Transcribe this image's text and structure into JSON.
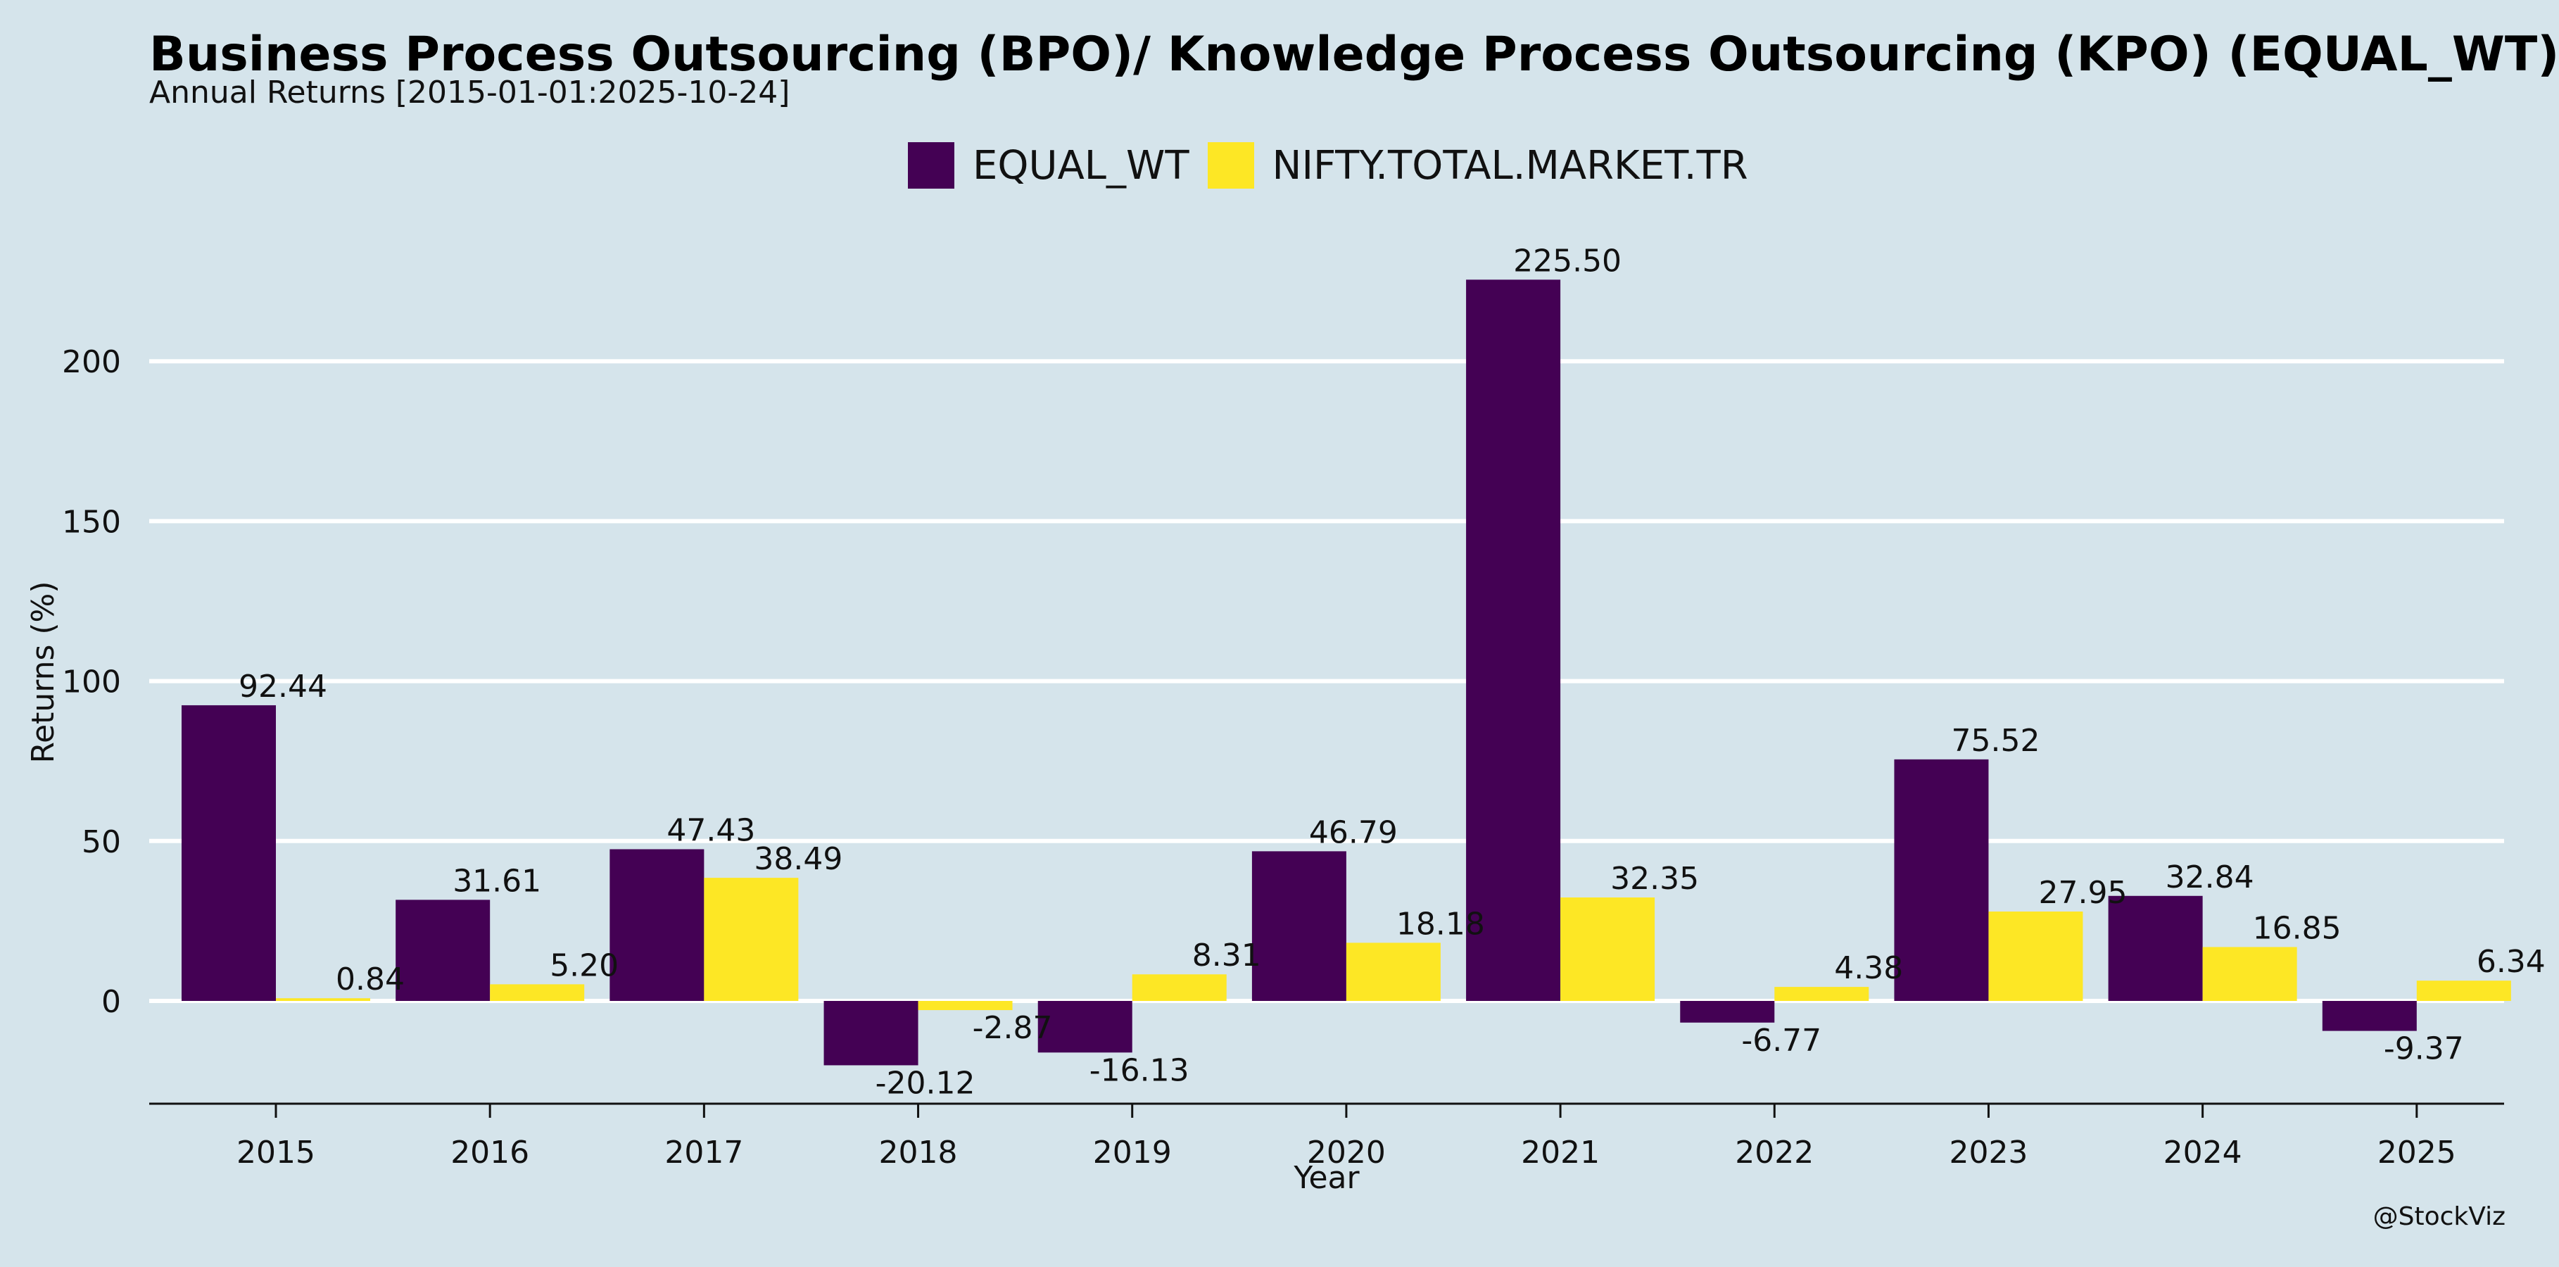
{
  "chart_data": {
    "type": "bar",
    "title": "Business Process Outsourcing (BPO)/ Knowledge Process Outsourcing (KPO) (EQUAL_WT)",
    "subtitle": "Annual Returns [2015-01-01:2025-10-24]",
    "xlabel": "Year",
    "ylabel": "Returns (%)",
    "categories": [
      "2015",
      "2016",
      "2017",
      "2018",
      "2019",
      "2020",
      "2021",
      "2022",
      "2023",
      "2024",
      "2025"
    ],
    "series": [
      {
        "name": "EQUAL_WT",
        "color": "#440154",
        "values": [
          92.44,
          31.61,
          47.43,
          -20.12,
          -16.13,
          46.79,
          225.5,
          -6.77,
          75.52,
          32.84,
          -9.37
        ],
        "labels": [
          "92.44",
          "31.61",
          "47.43",
          "-20.12",
          "-16.13",
          "46.79",
          "225.50",
          "-6.77",
          "75.52",
          "32.84",
          "-9.37"
        ]
      },
      {
        "name": "NIFTY.TOTAL.MARKET.TR",
        "color": "#fde725",
        "values": [
          0.84,
          5.2,
          38.49,
          -2.87,
          8.31,
          18.18,
          32.35,
          4.38,
          27.95,
          16.85,
          6.34
        ],
        "labels": [
          "0.84",
          "5.20",
          "38.49",
          "-2.87",
          "8.31",
          "18.18",
          "32.35",
          "4.38",
          "27.95",
          "16.85",
          "6.34"
        ]
      }
    ],
    "yticks": [
      0,
      50,
      100,
      150,
      200
    ],
    "ylim": [
      -32.5,
      238
    ],
    "grid": true,
    "legend": "top-center",
    "credit": "@StockViz"
  }
}
